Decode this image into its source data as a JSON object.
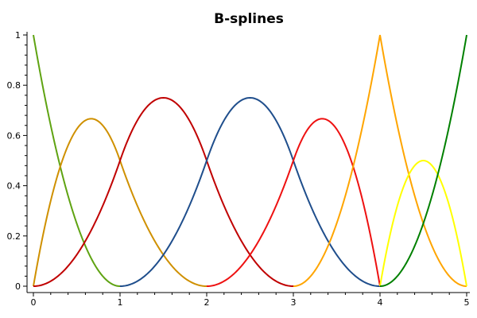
{
  "chart_data": {
    "type": "line",
    "title": "B-splines",
    "xlabel": "",
    "ylabel": "",
    "xlim": [
      0,
      5
    ],
    "ylim": [
      0,
      1
    ],
    "x_ticks": [
      "0",
      "1",
      "2",
      "3",
      "4",
      "5"
    ],
    "y_ticks": [
      "0",
      "0.2",
      "0.4",
      "0.6",
      "0.8",
      "1"
    ],
    "grid": false,
    "legend": "none",
    "series": [
      {
        "color": "#5fa312",
        "x": [
          0,
          0.25,
          0.5,
          0.75,
          1
        ],
        "y": [
          1,
          0.5625,
          0.25,
          0.0625,
          0
        ]
      },
      {
        "color": "#cf9000",
        "x": [
          0,
          0.25,
          0.5,
          0.667,
          1,
          1.5,
          2
        ],
        "y": [
          0,
          0.4063,
          0.625,
          0.667,
          0.5,
          0.125,
          0
        ]
      },
      {
        "color": "#c00000",
        "x": [
          0,
          0.5,
          1,
          1.5,
          2,
          2.5,
          3
        ],
        "y": [
          0,
          0.125,
          0.5,
          0.75,
          0.5,
          0.125,
          0
        ]
      },
      {
        "color": "#1f4e8c",
        "x": [
          1,
          1.5,
          2,
          2.5,
          3,
          3.5,
          4
        ],
        "y": [
          0,
          0.125,
          0.5,
          0.75,
          0.5,
          0.125,
          0
        ]
      },
      {
        "color": "#ee1111",
        "x": [
          2,
          2.5,
          3,
          3.333,
          3.5,
          3.75,
          4
        ],
        "y": [
          0,
          0.125,
          0.5,
          0.667,
          0.625,
          0.4063,
          0
        ]
      },
      {
        "color": "#ffa500",
        "x": [
          3,
          3.5,
          4,
          4.25,
          4.5,
          4.75,
          5
        ],
        "y": [
          0,
          0.25,
          1,
          0.5625,
          0.25,
          0.0625,
          0
        ]
      },
      {
        "color": "#ffff00",
        "x": [
          4,
          4.25,
          4.5,
          4.75,
          5
        ],
        "y": [
          0,
          0.375,
          0.5,
          0.375,
          0
        ]
      },
      {
        "color": "#008000",
        "x": [
          4,
          4.25,
          4.5,
          4.75,
          5
        ],
        "y": [
          0,
          0.0625,
          0.25,
          0.5625,
          1
        ]
      }
    ]
  }
}
